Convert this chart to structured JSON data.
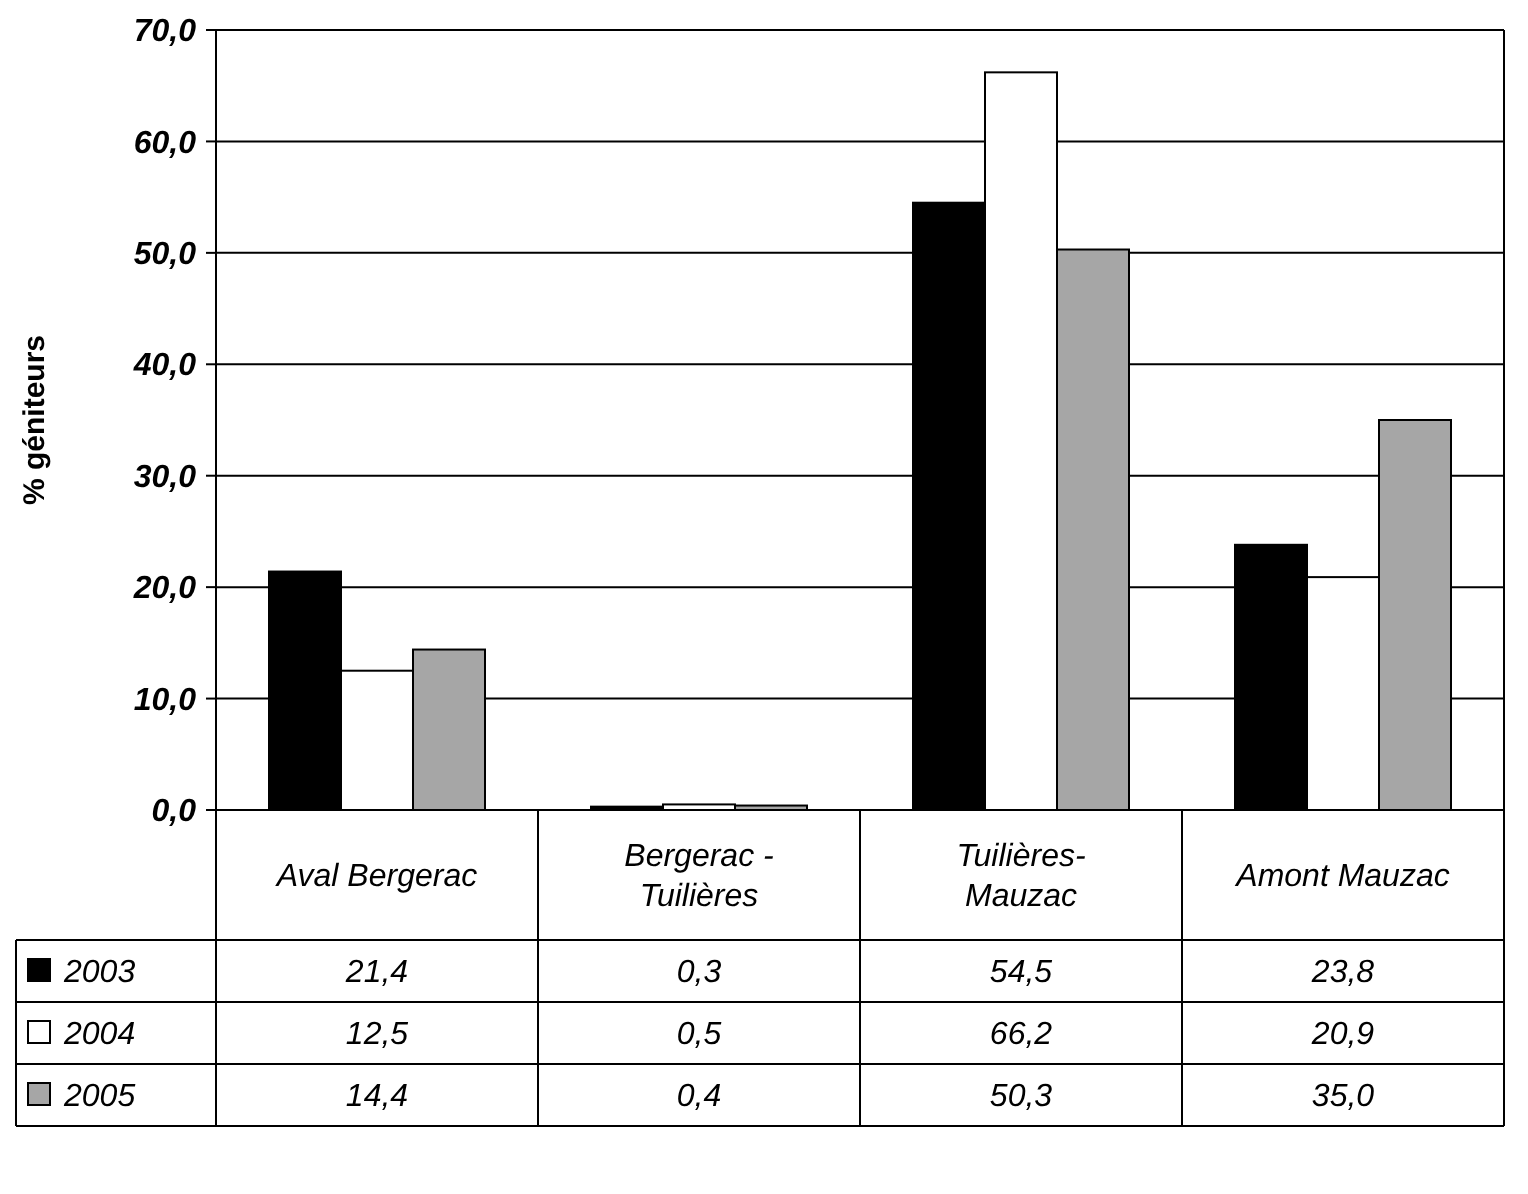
{
  "chart_data": {
    "type": "bar",
    "ylabel": "% géniteurs",
    "categories": [
      "Aval Bergerac",
      "Bergerac - Tuilières",
      "Tuilières- Mauzac",
      "Amont Mauzac"
    ],
    "series": [
      {
        "name": "2003",
        "color": "#000000",
        "values": [
          21.4,
          0.3,
          54.5,
          23.8
        ],
        "value_labels": [
          "21,4",
          "0,3",
          "54,5",
          "23,8"
        ]
      },
      {
        "name": "2004",
        "color": "#ffffff",
        "values": [
          12.5,
          0.5,
          66.2,
          20.9
        ],
        "value_labels": [
          "12,5",
          "0,5",
          "66,2",
          "20,9"
        ]
      },
      {
        "name": "2005",
        "color": "#a6a6a6",
        "values": [
          14.4,
          0.4,
          50.3,
          35.0
        ],
        "value_labels": [
          "14,4",
          "0,4",
          "50,3",
          "35,0"
        ]
      }
    ],
    "ylim": [
      0,
      70
    ],
    "yticks": [
      {
        "value": 0,
        "label": "0,0"
      },
      {
        "value": 10,
        "label": "10,0"
      },
      {
        "value": 20,
        "label": "20,0"
      },
      {
        "value": 30,
        "label": "30,0"
      },
      {
        "value": 40,
        "label": "40,0"
      },
      {
        "value": 50,
        "label": "50,0"
      },
      {
        "value": 60,
        "label": "60,0"
      },
      {
        "value": 70,
        "label": "70,0"
      }
    ],
    "grid": "y",
    "legend": "bottom"
  }
}
